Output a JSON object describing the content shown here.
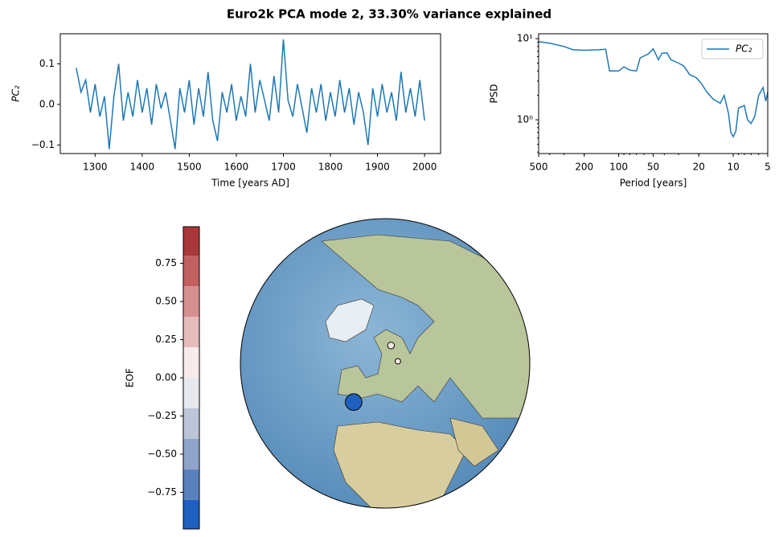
{
  "title": "Euro2k PCA mode 2, 33.30% variance explained",
  "chart_data": [
    {
      "type": "line",
      "xlabel": "Time [years AD]",
      "ylabel": "PC₂",
      "x": [
        1260,
        1270,
        1280,
        1290,
        1300,
        1310,
        1320,
        1330,
        1340,
        1350,
        1360,
        1370,
        1380,
        1390,
        1400,
        1410,
        1420,
        1430,
        1440,
        1450,
        1460,
        1470,
        1480,
        1490,
        1500,
        1510,
        1520,
        1530,
        1540,
        1550,
        1560,
        1570,
        1580,
        1590,
        1600,
        1610,
        1620,
        1630,
        1640,
        1650,
        1660,
        1670,
        1680,
        1690,
        1700,
        1710,
        1720,
        1730,
        1740,
        1750,
        1760,
        1770,
        1780,
        1790,
        1800,
        1810,
        1820,
        1830,
        1840,
        1850,
        1860,
        1870,
        1880,
        1890,
        1900,
        1910,
        1920,
        1930,
        1940,
        1950,
        1960,
        1970,
        1980,
        1990,
        2000
      ],
      "series": [
        {
          "name": "PC₂",
          "color": "#1f77b4",
          "values": [
            0.09,
            0.03,
            0.06,
            -0.02,
            0.05,
            -0.03,
            0.02,
            -0.11,
            0.02,
            0.1,
            -0.04,
            0.03,
            -0.03,
            0.06,
            -0.02,
            0.04,
            -0.05,
            0.05,
            -0.01,
            0.03,
            -0.04,
            -0.11,
            0.04,
            -0.02,
            0.06,
            -0.05,
            0.04,
            -0.03,
            0.08,
            -0.04,
            -0.09,
            0.03,
            -0.02,
            0.05,
            -0.04,
            0.02,
            -0.03,
            0.1,
            -0.02,
            0.06,
            0.01,
            -0.04,
            0.07,
            -0.02,
            0.16,
            0.01,
            -0.03,
            0.05,
            -0.01,
            -0.07,
            0.04,
            -0.02,
            0.05,
            -0.04,
            0.03,
            -0.03,
            0.06,
            -0.02,
            0.04,
            -0.05,
            0.03,
            -0.02,
            -0.1,
            0.04,
            -0.03,
            0.05,
            -0.02,
            0.03,
            -0.04,
            0.08,
            -0.02,
            0.04,
            -0.03,
            0.06,
            -0.04
          ]
        }
      ],
      "xlim": [
        1226,
        2034
      ],
      "xticks": [
        1300,
        1400,
        1500,
        1600,
        1700,
        1800,
        1900,
        2000
      ],
      "ylim": [
        -0.121,
        0.174
      ],
      "yticks": [
        {
          "value": -0.1,
          "label": "−0.1"
        },
        {
          "value": 0,
          "label": "0.0"
        },
        {
          "value": 0.1,
          "label": "0.1"
        }
      ]
    },
    {
      "type": "line",
      "xlabel": "Period [years]",
      "ylabel": "PSD",
      "xscale": "log",
      "yscale": "log",
      "legend": "upper right",
      "x": [
        500,
        400,
        300,
        250,
        200,
        150,
        130,
        120,
        100,
        90,
        80,
        70,
        65,
        55,
        50,
        45,
        42,
        38,
        35,
        30,
        27,
        24,
        21,
        19,
        17,
        15,
        13,
        12,
        11,
        10.5,
        10,
        9.5,
        9,
        8,
        7.5,
        7,
        6.5,
        6,
        5.5,
        5.2,
        5
      ],
      "series": [
        {
          "name": "PC₂",
          "color": "#1f77b4",
          "values": [
            9.2,
            8.8,
            8.0,
            7.3,
            7.2,
            7.3,
            7.4,
            4.0,
            4.0,
            4.5,
            4.1,
            4.0,
            5.8,
            6.5,
            7.5,
            5.5,
            6.6,
            6.7,
            5.5,
            5.0,
            4.6,
            3.6,
            3.3,
            2.8,
            2.2,
            1.8,
            1.6,
            2.0,
            1.2,
            0.7,
            0.62,
            0.72,
            1.4,
            1.5,
            1.0,
            0.9,
            1.1,
            2.0,
            2.5,
            1.7,
            2.2
          ]
        }
      ],
      "xlim": [
        500,
        5
      ],
      "xticks": [
        500,
        200,
        100,
        50,
        20,
        10,
        5
      ],
      "ylim": [
        0.384,
        11.5
      ],
      "yticks": [
        {
          "value": 1,
          "label": "10⁰"
        },
        {
          "value": 10,
          "label": "10¹"
        }
      ]
    },
    {
      "type": "map",
      "points": {
        "lat": [
          38,
          62,
          55.5
        ],
        "lon": [
          -1,
          20,
          24
        ],
        "values": [
          -0.92,
          0.15,
          0.05
        ]
      },
      "colorbar": {
        "label": "EOF",
        "lim": [
          -0.99,
          0.99
        ],
        "levels": [
          -1,
          -0.8,
          -0.6,
          -0.4,
          -0.2,
          0,
          0.2,
          0.4,
          0.6,
          0.8,
          1
        ],
        "colors": [
          "#1f5fbf",
          "#5a80be",
          "#8fa4c8",
          "#bcc5d8",
          "#e7e9ef",
          "#f7ebeb",
          "#e6bdbc",
          "#d59190",
          "#c1605f",
          "#a8373a"
        ],
        "ticks": [
          {
            "value": -0.75,
            "label": "−0.75"
          },
          {
            "value": -0.5,
            "label": "−0.50"
          },
          {
            "value": -0.25,
            "label": "−0.25"
          },
          {
            "value": 0,
            "label": "0.00"
          },
          {
            "value": 0.25,
            "label": "0.25"
          },
          {
            "value": 0.5,
            "label": "0.50"
          },
          {
            "value": 0.75,
            "label": "0.75"
          }
        ]
      }
    }
  ]
}
